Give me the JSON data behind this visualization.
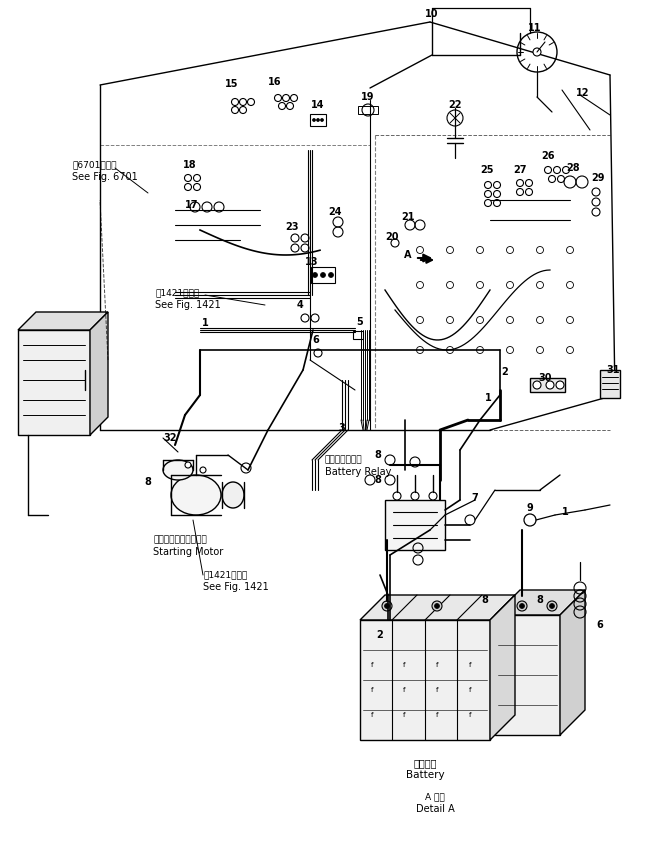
{
  "bg_color": "#ffffff",
  "lc": "#000000",
  "tc": "#000000",
  "fig_width": 6.45,
  "fig_height": 8.44,
  "dpi": 100,
  "labels": {
    "fig6701_ja": "第6701図参照",
    "fig6701_en": "See Fig. 6701",
    "fig1421_ja_1": "第1421図参照",
    "fig1421_en_1": "See Fig. 1421",
    "fig1421_ja_2": "第1421図参照",
    "fig1421_en_2": "See Fig. 1421",
    "starting_motor_ja": "スターティングモータ",
    "starting_motor_en": "Starting Motor",
    "battery_relay_ja": "バッテリリレー",
    "battery_relay_en": "Battery Relay",
    "battery_ja": "バッテリ",
    "battery_en": "Battery",
    "detail_a_ja": "A 詳細",
    "detail_a_en": "Detail A"
  }
}
